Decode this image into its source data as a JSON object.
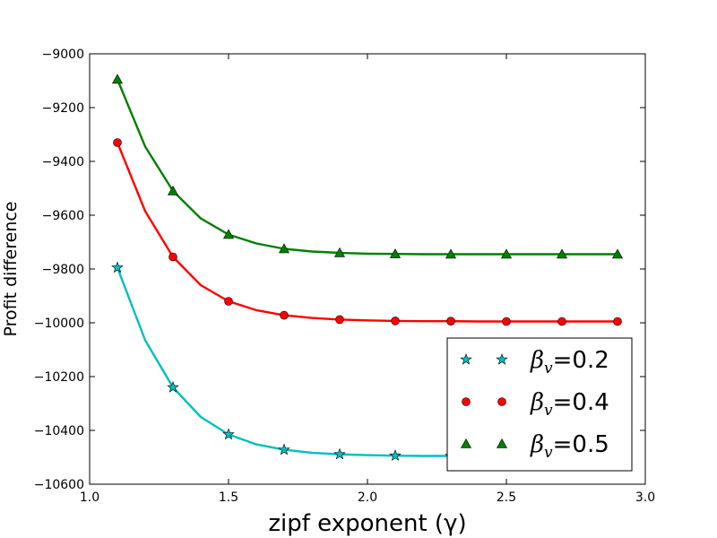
{
  "chart_data": {
    "type": "line",
    "title": "",
    "xlabel": "zipf exponent (γ)",
    "ylabel": "Profit difference",
    "xlim": [
      1.0,
      3.0
    ],
    "ylim": [
      -10600,
      -9000
    ],
    "xticks": [
      1.0,
      1.5,
      2.0,
      2.5,
      3.0
    ],
    "xtick_labels": [
      "1.0",
      "1.5",
      "2.0",
      "2.5",
      "3.0"
    ],
    "yticks": [
      -9000,
      -9200,
      -9400,
      -9600,
      -9800,
      -10000,
      -10200,
      -10400,
      -10600
    ],
    "ytick_labels": [
      "−9000",
      "−9200",
      "−9400",
      "−9600",
      "−9800",
      "−10000",
      "−10200",
      "−10400",
      "−10600"
    ],
    "grid": false,
    "legend_position": "lower-right",
    "series": [
      {
        "name": "βv=0.2",
        "legend_symbol": "β",
        "legend_subscript": "v",
        "legend_value": "=0.2",
        "color": "#00bfbf",
        "marker": "star",
        "x": [
          1.1,
          1.2,
          1.3,
          1.4,
          1.5,
          1.6,
          1.7,
          1.8,
          1.9,
          2.0,
          2.1,
          2.2,
          2.3,
          2.4,
          2.5,
          2.6,
          2.7,
          2.8,
          2.9
        ],
        "y": [
          -9795,
          -10065,
          -10240,
          -10350,
          -10415,
          -10452,
          -10472,
          -10483,
          -10489,
          -10492,
          -10494,
          -10495,
          -10495,
          -10495,
          -10495,
          -10495,
          -10495,
          -10495,
          -10495
        ],
        "marker_x": [
          1.1,
          1.3,
          1.5,
          1.7,
          1.9,
          2.1,
          2.3,
          2.5,
          2.7,
          2.9
        ]
      },
      {
        "name": "βv=0.4",
        "legend_symbol": "β",
        "legend_subscript": "v",
        "legend_value": "=0.4",
        "color": "#ff0000",
        "marker": "circle",
        "x": [
          1.1,
          1.2,
          1.3,
          1.4,
          1.5,
          1.6,
          1.7,
          1.8,
          1.9,
          2.0,
          2.1,
          2.2,
          2.3,
          2.4,
          2.5,
          2.6,
          2.7,
          2.8,
          2.9
        ],
        "y": [
          -9330,
          -9585,
          -9755,
          -9860,
          -9920,
          -9953,
          -9972,
          -9982,
          -9988,
          -9991,
          -9993,
          -9994,
          -9994,
          -9995,
          -9995,
          -9995,
          -9995,
          -9995,
          -9995
        ],
        "marker_x": [
          1.1,
          1.3,
          1.5,
          1.7,
          1.9,
          2.1,
          2.3,
          2.5,
          2.7,
          2.9
        ]
      },
      {
        "name": "βv=0.5",
        "legend_symbol": "β",
        "legend_subscript": "v",
        "legend_value": "=0.5",
        "color": "#008000",
        "marker": "triangle",
        "x": [
          1.1,
          1.2,
          1.3,
          1.4,
          1.5,
          1.6,
          1.7,
          1.8,
          1.9,
          2.0,
          2.1,
          2.2,
          2.3,
          2.4,
          2.5,
          2.6,
          2.7,
          2.8,
          2.9
        ],
        "y": [
          -9095,
          -9345,
          -9510,
          -9612,
          -9672,
          -9705,
          -9725,
          -9735,
          -9740,
          -9743,
          -9744,
          -9745,
          -9745,
          -9745,
          -9745,
          -9745,
          -9745,
          -9745,
          -9745
        ],
        "marker_x": [
          1.1,
          1.3,
          1.5,
          1.7,
          1.9,
          2.1,
          2.3,
          2.5,
          2.7,
          2.9
        ]
      }
    ]
  }
}
